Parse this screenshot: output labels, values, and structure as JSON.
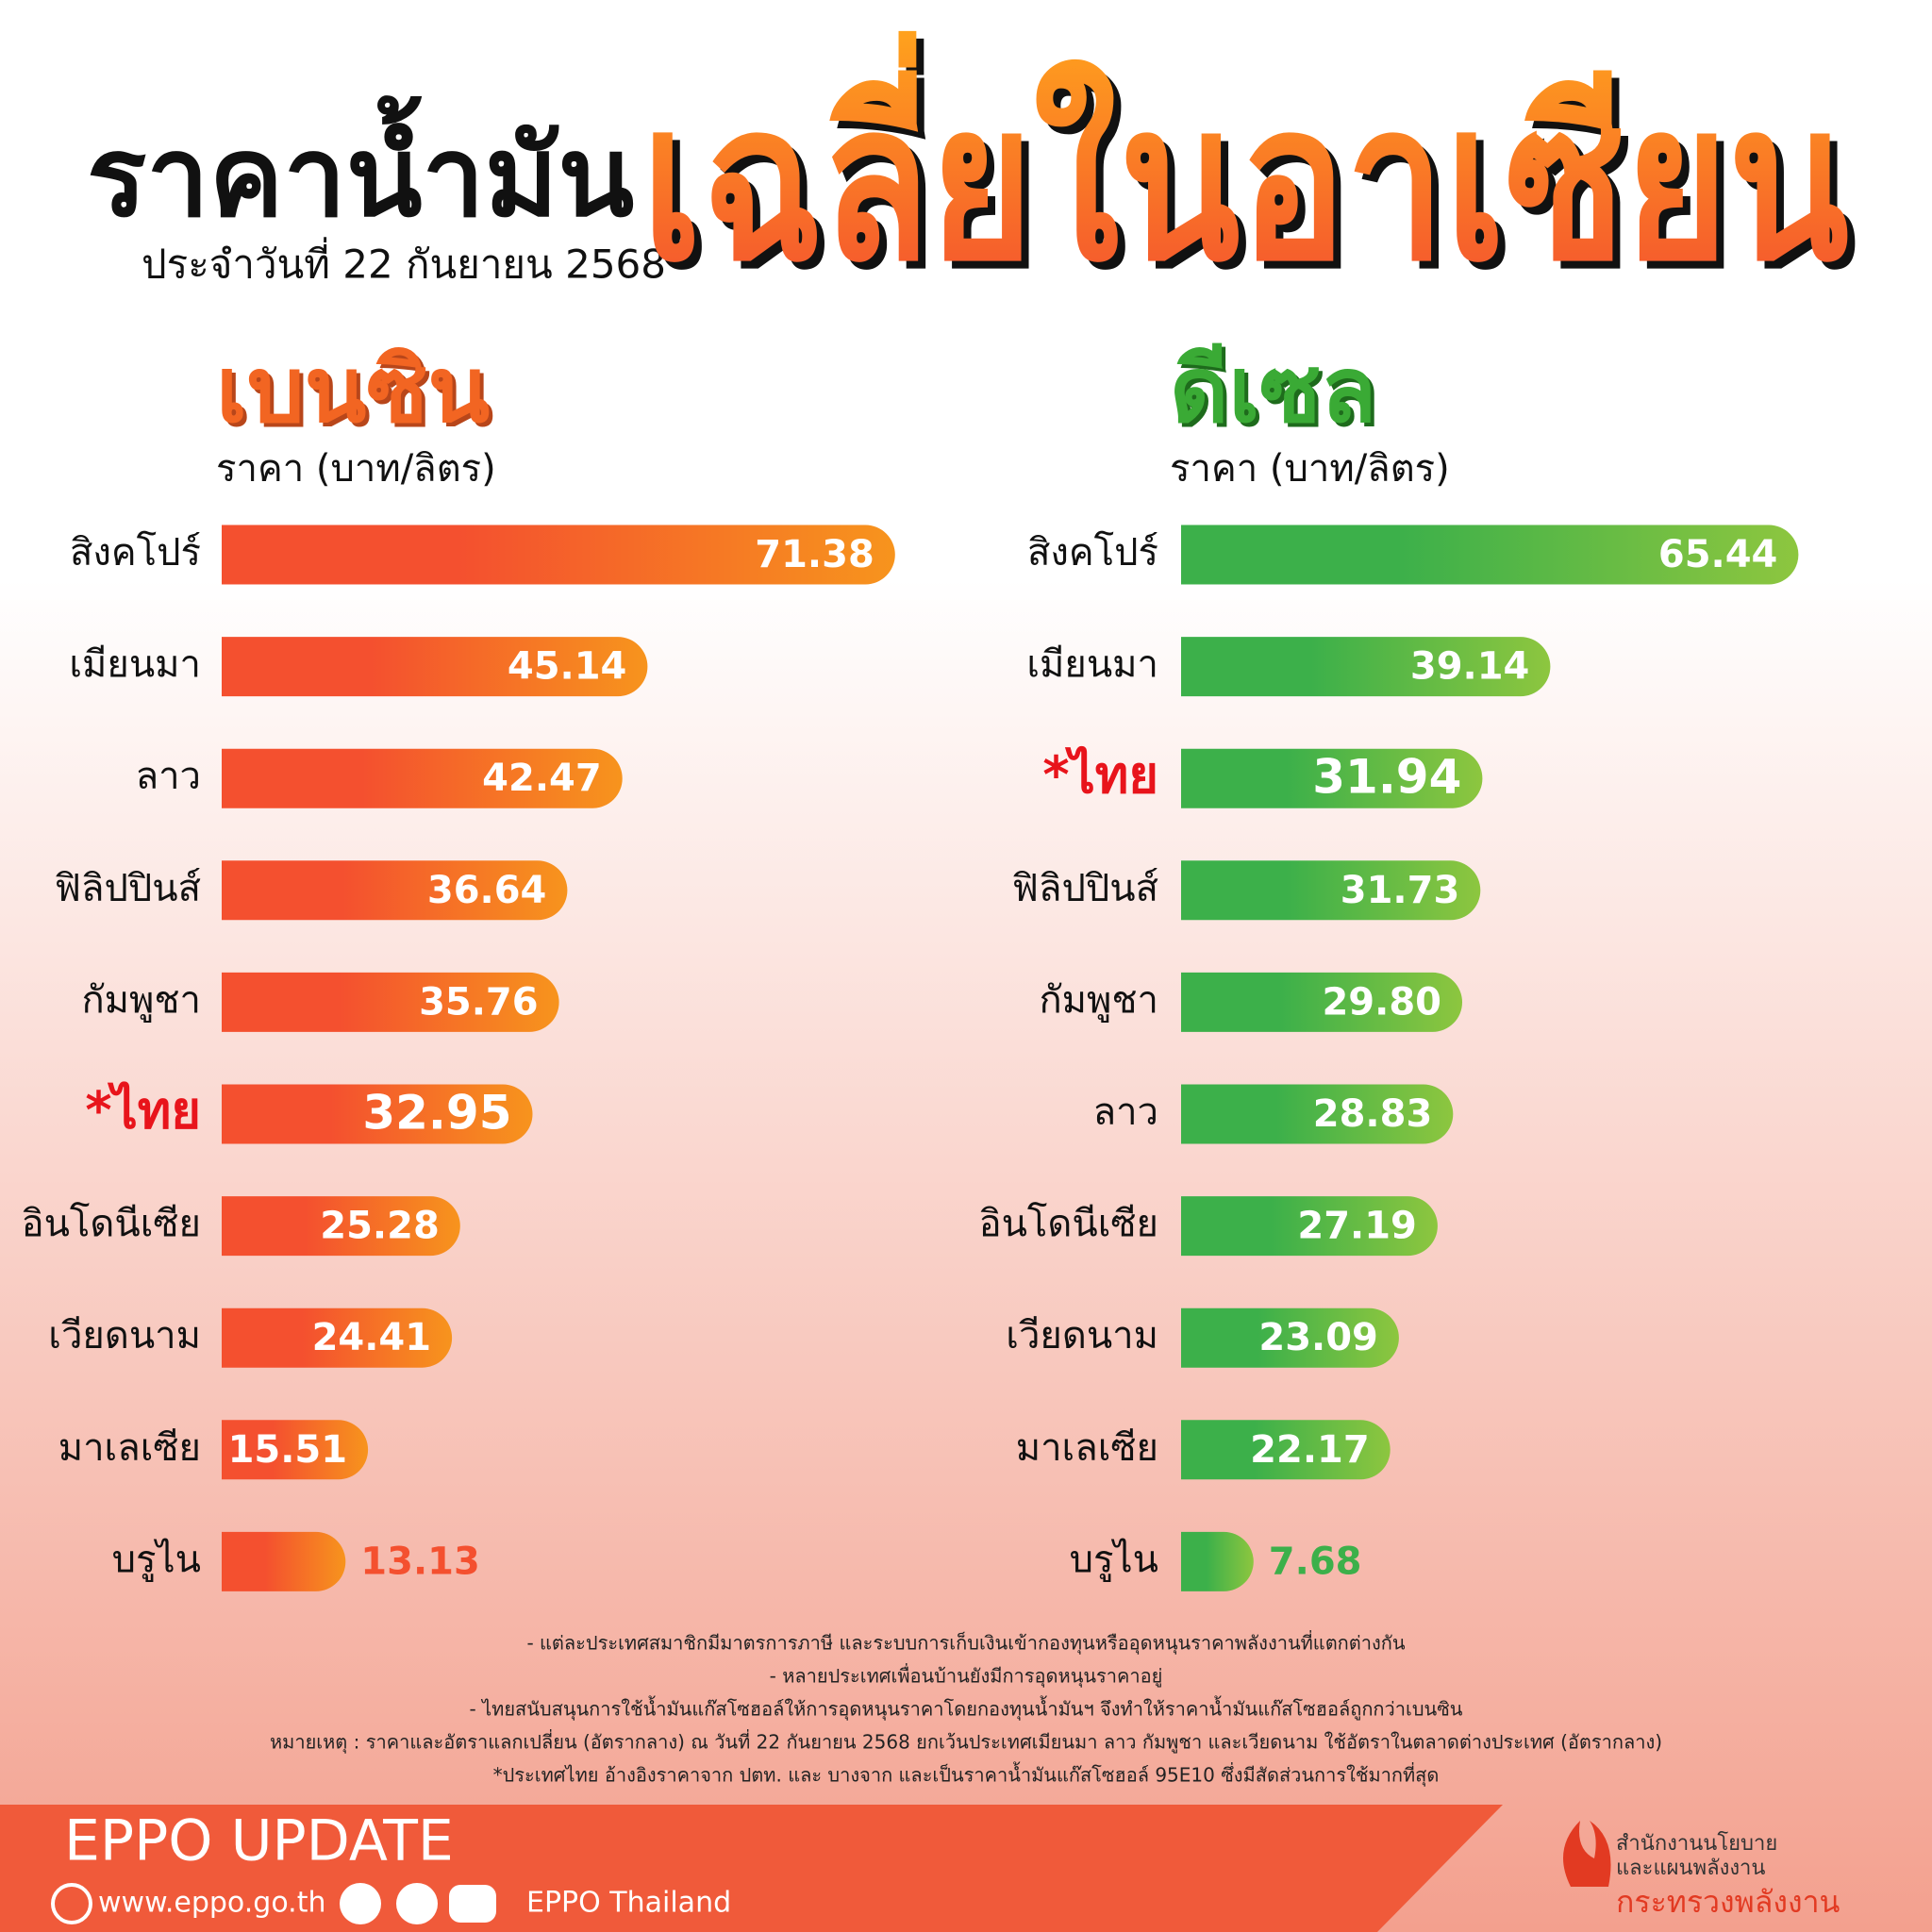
{
  "header": {
    "title": "ราคาน้ำมัน",
    "date": "ประจำวันที่  22 กันยายน 2568",
    "highlight": "เฉลี่ยในอาเซียน"
  },
  "chart_data": [
    {
      "type": "hbar",
      "title": "เบนซิน",
      "subtitle": "ราคา (บาท/ลิตร)",
      "categories": [
        "สิงคโปร์",
        "เมียนมา",
        "ลาว",
        "ฟิลิปปินส์",
        "กัมพูชา",
        "*ไทย",
        "อินโดนีเซีย",
        "เวียดนาม",
        "มาเลเซีย",
        "บรูไน"
      ],
      "values": [
        71.38,
        45.14,
        42.47,
        36.64,
        35.76,
        32.95,
        25.28,
        24.41,
        15.51,
        13.13
      ],
      "value_labels": [
        "71.38",
        "45.14",
        "42.47",
        "36.64",
        "35.76",
        "32.95",
        "25.28",
        "24.41",
        "15.51",
        "13.13"
      ],
      "colors": [
        "#f4502f",
        "#f7941d"
      ]
    },
    {
      "type": "hbar",
      "title": "ดีเซล",
      "subtitle": "ราคา (บาท/ลิตร)",
      "categories": [
        "สิงคโปร์",
        "เมียนมา",
        "*ไทย",
        "ฟิลิปปินส์",
        "กัมพูชา",
        "ลาว",
        "อินโดนีเซีย",
        "เวียดนาม",
        "มาเลเซีย",
        "บรูไน"
      ],
      "values": [
        65.44,
        39.14,
        31.94,
        31.73,
        29.8,
        28.83,
        27.19,
        23.09,
        22.17,
        7.68
      ],
      "value_labels": [
        "65.44",
        "39.14",
        "31.94",
        "31.73",
        "29.80",
        "28.83",
        "27.19",
        "23.09",
        "22.17",
        "7.68"
      ],
      "colors": [
        "#3cb04a",
        "#8dc63f"
      ]
    }
  ],
  "notes": [
    "- แต่ละประเทศสมาชิกมีมาตรการภาษี และระบบการเก็บเงินเข้ากองทุนหรืออุดหนุนราคาพลังงานที่แตกต่างกัน",
    "- หลายประเทศเพื่อนบ้านยังมีการอุดหนุนราคาอยู่",
    "- ไทยสนับสนุนการใช้น้ำมันแก๊สโซฮอล์ให้การอุดหนุนราคาโดยกองทุนน้ำมันฯ จึงทำให้ราคาน้ำมันแก๊สโซฮอล์ถูกกว่าเบนซิน",
    "หมายเหตุ :   ราคาและอัตราแลกเปลี่ยน (อัตรากลาง) ณ วันที่ 22 กันยายน 2568 ยกเว้นประเทศเมียนมา ลาว กัมพูชา และเวียดนาม ใช้อัตราในตลาดต่างประเทศ (อัตรากลาง)",
    "*ประเทศไทย อ้างอิงราคาจาก ปตท. และ บางจาก และเป็นราคาน้ำมันแก๊สโซฮอล์ 95E10 ซึ่งมีสัดส่วนการใช้มากที่สุด"
  ],
  "footer": {
    "brand": "EPPO UPDATE",
    "website": "www.eppo.go.th",
    "social": "EPPO Thailand",
    "org": [
      "สำนักงานนโยบาย",
      "และแผนพลังงาน",
      "กระทรวงพลังงาน"
    ]
  }
}
